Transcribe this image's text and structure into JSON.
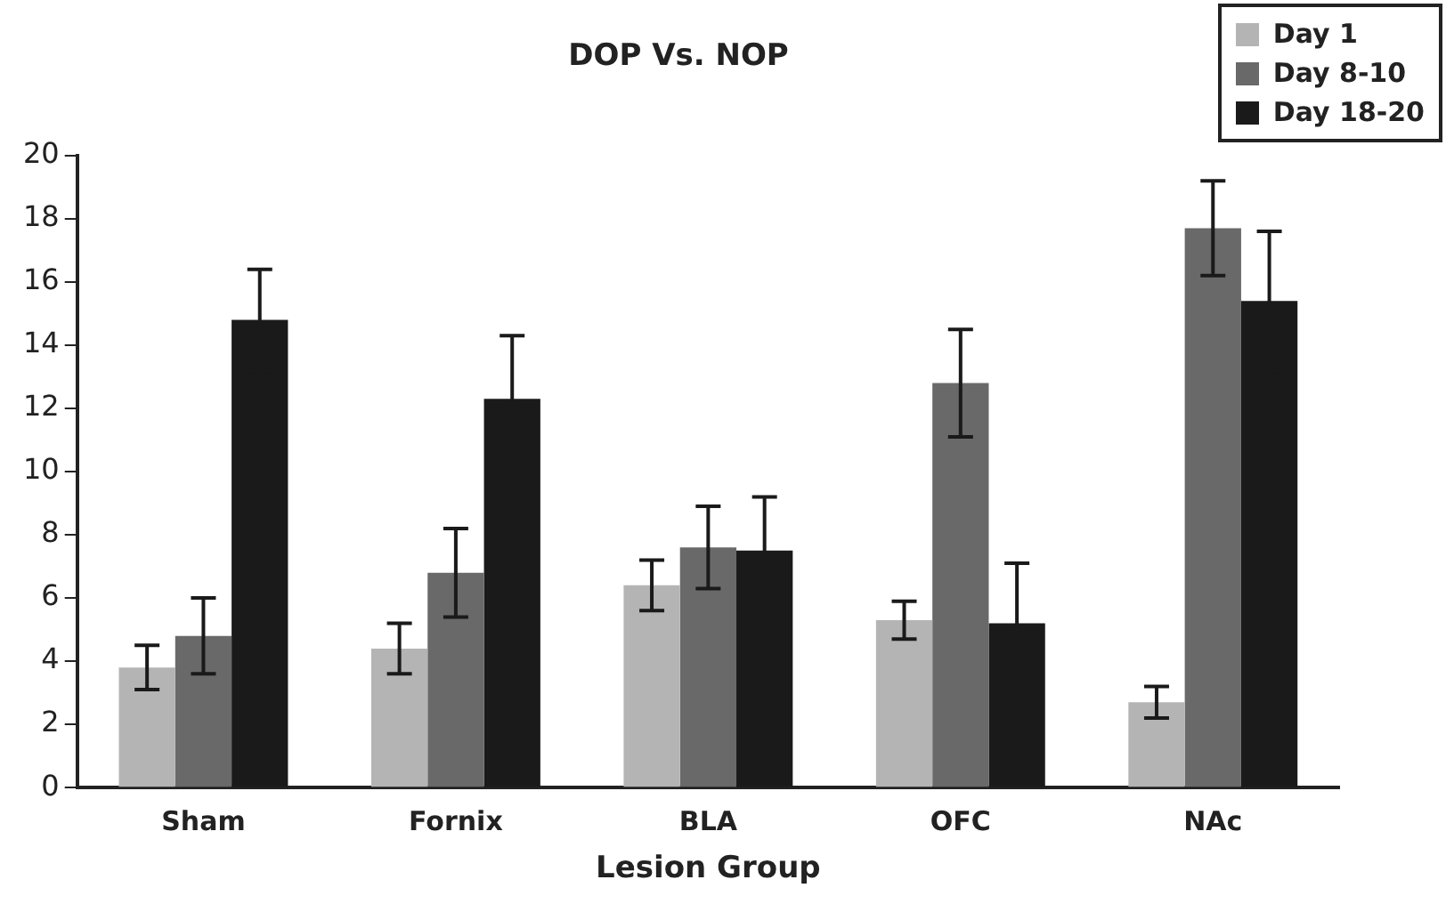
{
  "chart_data": {
    "type": "bar",
    "title": "DOP Vs. NOP",
    "xlabel": "Lesion Group",
    "categories": [
      "Sham",
      "Fornix",
      "BLA",
      "OFC",
      "NAc"
    ],
    "series": [
      {
        "name": "Day 1",
        "color": "#b4b4b4",
        "values": [
          3.8,
          4.4,
          6.4,
          5.3,
          2.7
        ],
        "errors": [
          0.7,
          0.8,
          0.8,
          0.6,
          0.5
        ]
      },
      {
        "name": "Day 8-10",
        "color": "#696969",
        "values": [
          4.8,
          6.8,
          7.6,
          12.8,
          17.7
        ],
        "errors": [
          1.2,
          1.4,
          1.3,
          1.7,
          1.5
        ]
      },
      {
        "name": "Day 18-20",
        "color": "#1a1a1a",
        "values": [
          14.8,
          12.3,
          7.5,
          5.2,
          15.4
        ],
        "errors": [
          1.6,
          2.0,
          1.7,
          1.9,
          2.2
        ]
      }
    ],
    "ylim": [
      0,
      20
    ],
    "yticks": [
      0,
      2,
      4,
      6,
      8,
      10,
      12,
      14,
      16,
      18,
      20
    ],
    "grid": false,
    "legend": "top right"
  }
}
